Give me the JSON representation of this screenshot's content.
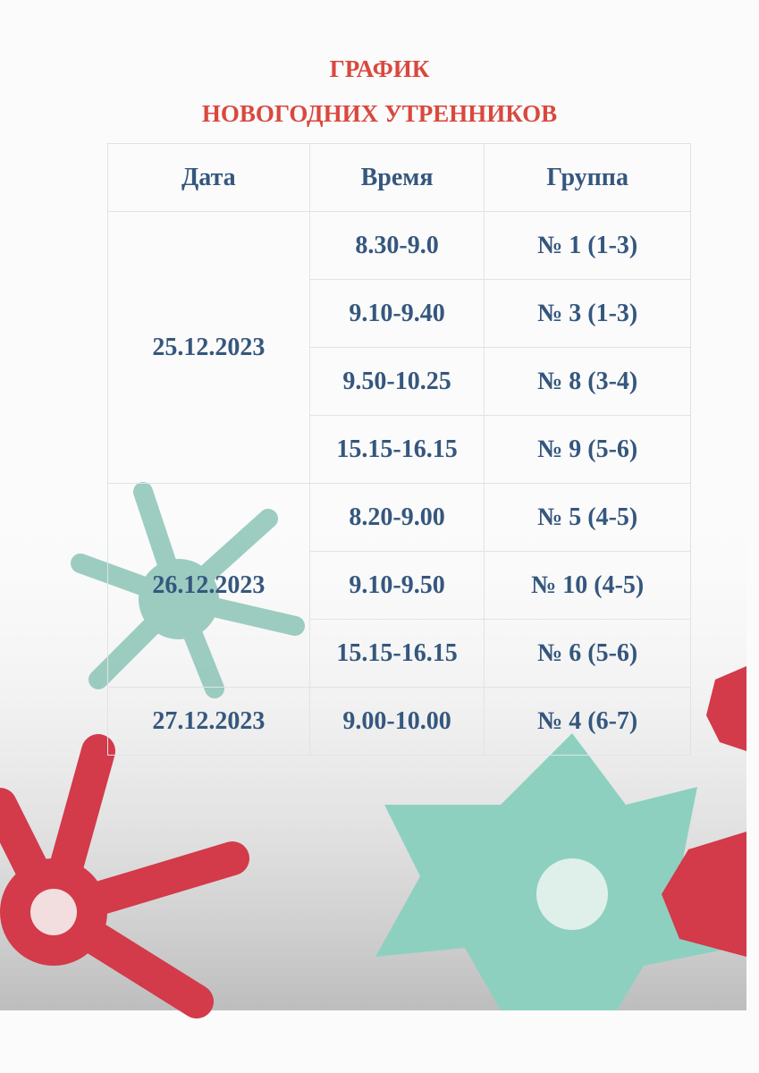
{
  "title_line1": "ГРАФИК",
  "title_line2": "НОВОГОДНИХ УТРЕННИКОВ",
  "colors": {
    "title": "#d9483f",
    "text": "#35577e",
    "snowflake_red": "#d33a4a",
    "snowflake_teal": "#7fbfae"
  },
  "table": {
    "headers": [
      "Дата",
      "Время",
      "Группа"
    ],
    "groups": [
      {
        "date": "25.12.2023",
        "rows": [
          {
            "time": "8.30-9.0",
            "group": "№ 1 (1-3)"
          },
          {
            "time": "9.10-9.40",
            "group": "№ 3 (1-3)"
          },
          {
            "time": "9.50-10.25",
            "group": "№ 8 (3-4)"
          },
          {
            "time": "15.15-16.15",
            "group": "№ 9 (5-6)"
          }
        ]
      },
      {
        "date": "26.12.2023",
        "rows": [
          {
            "time": "8.20-9.00",
            "group": "№ 5 (4-5)"
          },
          {
            "time": "9.10-9.50",
            "group": "№ 10 (4-5)"
          },
          {
            "time": "15.15-16.15",
            "group": "№ 6 (5-6)"
          }
        ]
      },
      {
        "date": "27.12.2023",
        "rows": [
          {
            "time": "9.00-10.00",
            "group": "№ 4 (6-7)"
          }
        ]
      }
    ]
  }
}
